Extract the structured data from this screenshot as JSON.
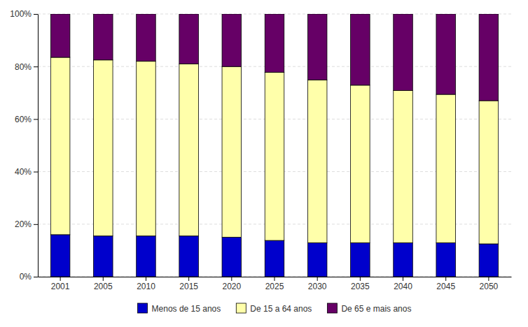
{
  "chart_data": {
    "type": "bar",
    "stacked": true,
    "categories": [
      "2001",
      "2005",
      "2010",
      "2015",
      "2020",
      "2025",
      "2030",
      "2035",
      "2040",
      "2045",
      "2050"
    ],
    "series": [
      {
        "name": "Menos de 15 anos",
        "color": "#0000cc",
        "values": [
          16.0,
          15.5,
          15.5,
          15.5,
          15.0,
          13.8,
          12.9,
          12.9,
          12.9,
          12.9,
          12.5
        ]
      },
      {
        "name": "De 15 a 64 anos",
        "color": "#ffffaa",
        "values": [
          67.5,
          67.0,
          66.5,
          65.5,
          65.0,
          64.0,
          62.0,
          60.0,
          58.0,
          56.5,
          54.5
        ]
      },
      {
        "name": "De 65 e mais anos",
        "color": "#660066",
        "values": [
          16.5,
          17.5,
          18.0,
          19.0,
          20.0,
          22.2,
          25.1,
          27.1,
          29.1,
          30.6,
          33.0
        ]
      }
    ],
    "ylim": [
      0,
      100
    ],
    "yticks": [
      {
        "value": 0,
        "label": "0%"
      },
      {
        "value": 20,
        "label": "20%"
      },
      {
        "value": 40,
        "label": "40%"
      },
      {
        "value": 60,
        "label": "60%"
      },
      {
        "value": 80,
        "label": "80%"
      },
      {
        "value": 100,
        "label": "100%"
      }
    ],
    "grid": true,
    "legend": "bottom"
  }
}
